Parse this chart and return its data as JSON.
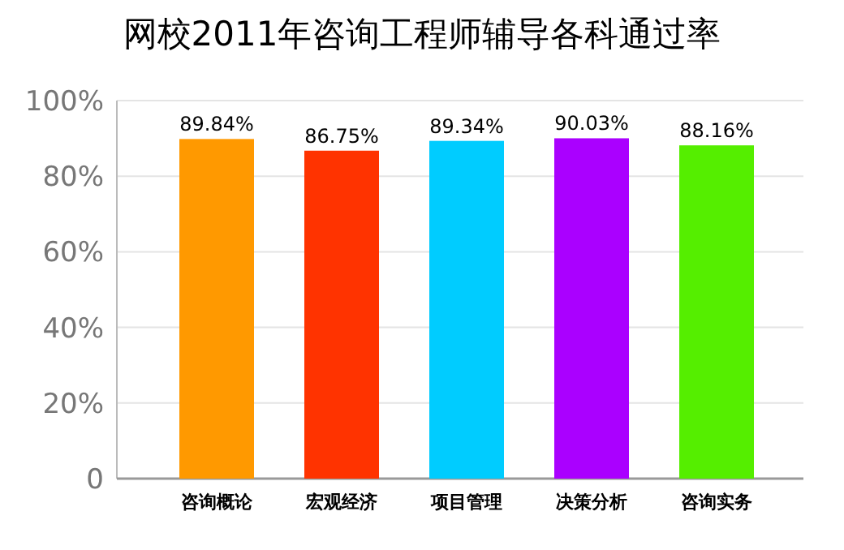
{
  "chart_data": {
    "type": "bar",
    "title": "网校2011年咨询工程师辅导各科通过率",
    "categories": [
      "咨询概论",
      "宏观经济",
      "项目管理",
      "决策分析",
      "咨询实务"
    ],
    "values": [
      89.84,
      86.75,
      89.34,
      90.03,
      88.16
    ],
    "value_labels": [
      "89.84%",
      "86.75%",
      "89.34%",
      "90.03%",
      "88.16%"
    ],
    "colors": [
      "#ff9900",
      "#ff3300",
      "#00ccff",
      "#aa00ff",
      "#55ee00"
    ],
    "ylim": [
      0,
      100
    ],
    "yticks": [
      0,
      {
        "value": 20,
        "label": "20%"
      },
      {
        "value": 40,
        "label": "40%"
      },
      {
        "value": 60,
        "label": "60%"
      },
      {
        "value": 80,
        "label": "80%"
      },
      {
        "value": 100,
        "label": "100%"
      }
    ],
    "grid": "y"
  }
}
